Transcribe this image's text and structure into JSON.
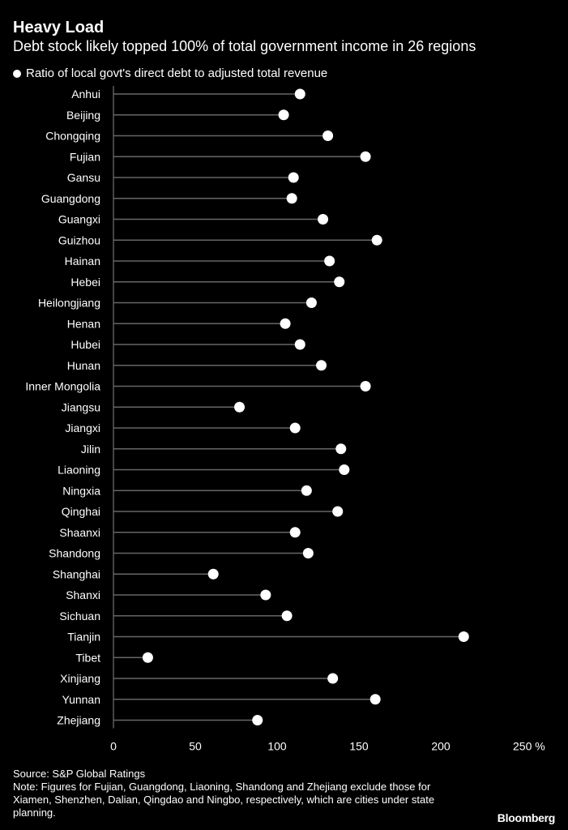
{
  "title": "Heavy Load",
  "subtitle": "Debt stock likely topped 100% of total government income in 26 regions",
  "legend": "Ratio of local govt's direct debt to adjusted total revenue",
  "source": "Source: S&P Global Ratings",
  "note": "Note: Figures for Fujian, Guangdong, Liaoning, Shandong and Zhejiang exclude those for Xiamen, Shenzhen, Dalian, Qingdao and Ningbo, respectively, which are cities under state planning.",
  "logo": "Bloomberg",
  "colors": {
    "background": "#000000",
    "line": "#666666",
    "dot": "#ffffff",
    "text": "#ffffff"
  },
  "chart_data": {
    "type": "scatter",
    "subtype": "lollipop",
    "title": "Heavy Load",
    "xlabel": "",
    "ylabel": "",
    "unit_suffix": "%",
    "xlim": [
      0,
      250
    ],
    "xticks": [
      0,
      50,
      100,
      150,
      200,
      250
    ],
    "xtick_labels": [
      "0",
      "50",
      "100",
      "150",
      "200",
      "250 %"
    ],
    "grid": false,
    "series": [
      {
        "name": "Ratio of local govt's direct debt to adjusted total revenue"
      }
    ],
    "categories": [
      "Anhui",
      "Beijing",
      "Chongqing",
      "Fujian",
      "Gansu",
      "Guangdong",
      "Guangxi",
      "Guizhou",
      "Hainan",
      "Hebei",
      "Heilongjiang",
      "Henan",
      "Hubei",
      "Hunan",
      "Inner Mongolia",
      "Jiangsu",
      "Jiangxi",
      "Jilin",
      "Liaoning",
      "Ningxia",
      "Qinghai",
      "Shaanxi",
      "Shandong",
      "Shanghai",
      "Shanxi",
      "Sichuan",
      "Tianjin",
      "Tibet",
      "Xinjiang",
      "Yunnan",
      "Zhejiang"
    ],
    "values": [
      114,
      104,
      131,
      154,
      110,
      109,
      128,
      161,
      132,
      138,
      121,
      105,
      114,
      127,
      154,
      77,
      111,
      139,
      141,
      118,
      137,
      111,
      119,
      61,
      93,
      106,
      214,
      21,
      134,
      160,
      88
    ]
  }
}
